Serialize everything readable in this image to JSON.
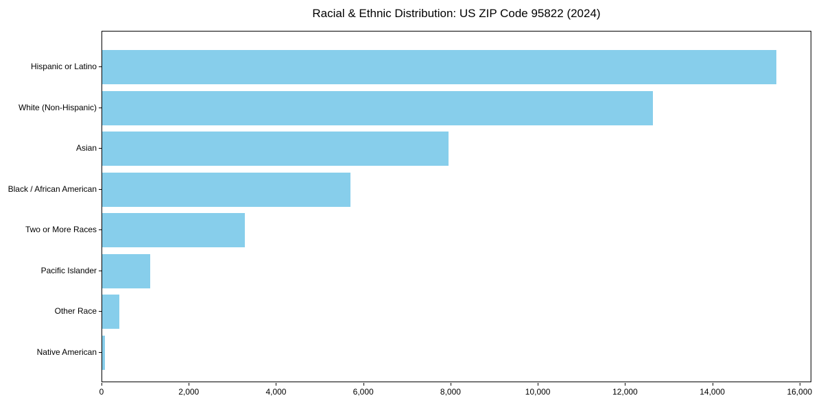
{
  "figure": {
    "title": "Racial & Ethnic Distribution: US ZIP Code 95822 (2024)"
  },
  "chart_data": {
    "type": "bar",
    "orientation": "horizontal",
    "title": "Racial & Ethnic Distribution: US ZIP Code 95822 (2024)",
    "categories": [
      "Hispanic or Latino",
      "White (Non-Hispanic)",
      "Asian",
      "Black / African American",
      "Two or More Races",
      "Pacific Islander",
      "Other Race",
      "Native American"
    ],
    "values": [
      15480,
      12650,
      7950,
      5700,
      3280,
      1100,
      390,
      60
    ],
    "xlabel": "",
    "ylabel": "",
    "xlim": [
      0,
      16270
    ],
    "xticks": [
      0,
      2000,
      4000,
      6000,
      8000,
      10000,
      12000,
      14000,
      16000
    ],
    "xtick_labels": [
      "0",
      "2,000",
      "4,000",
      "6,000",
      "8,000",
      "10,000",
      "12,000",
      "14,000",
      "16,000"
    ],
    "grid": false,
    "legend": null,
    "bar_color": "#87CEEB",
    "axis_color": "#000000",
    "text_color": "#000000",
    "background_color": "#FFFFFF"
  }
}
